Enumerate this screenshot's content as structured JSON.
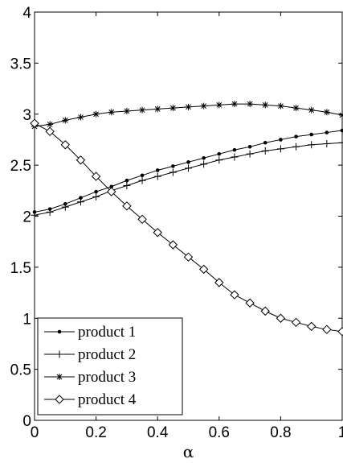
{
  "chart_data": {
    "type": "line",
    "xlabel": "α",
    "ylabel": "",
    "xlim": [
      0,
      1
    ],
    "ylim": [
      0,
      4
    ],
    "xticks": [
      "0",
      "0.2",
      "0.4",
      "0.6",
      "0.8",
      "1"
    ],
    "yticks": [
      "0",
      "0.5",
      "1",
      "1.5",
      "2",
      "2.5",
      "3",
      "3.5",
      "4"
    ],
    "grid": false,
    "legend_position": "bottom-left",
    "x": [
      0,
      0.05,
      0.1,
      0.15,
      0.2,
      0.25,
      0.3,
      0.35,
      0.4,
      0.45,
      0.5,
      0.55,
      0.6,
      0.65,
      0.7,
      0.75,
      0.8,
      0.85,
      0.9,
      0.95,
      1.0
    ],
    "series": [
      {
        "name": "product 1",
        "marker": "dot",
        "values": [
          2.04,
          2.07,
          2.12,
          2.18,
          2.24,
          2.29,
          2.35,
          2.4,
          2.45,
          2.49,
          2.53,
          2.57,
          2.61,
          2.65,
          2.68,
          2.72,
          2.75,
          2.78,
          2.8,
          2.82,
          2.84
        ]
      },
      {
        "name": "product 2",
        "marker": "plus",
        "values": [
          2.01,
          2.04,
          2.09,
          2.14,
          2.19,
          2.25,
          2.3,
          2.35,
          2.39,
          2.43,
          2.47,
          2.51,
          2.55,
          2.58,
          2.61,
          2.64,
          2.66,
          2.68,
          2.7,
          2.71,
          2.72
        ]
      },
      {
        "name": "product 3",
        "marker": "star",
        "values": [
          2.88,
          2.9,
          2.94,
          2.97,
          3.0,
          3.02,
          3.03,
          3.04,
          3.05,
          3.06,
          3.07,
          3.08,
          3.09,
          3.1,
          3.1,
          3.09,
          3.08,
          3.06,
          3.04,
          3.02,
          2.99
        ]
      },
      {
        "name": "product 4",
        "marker": "diamond",
        "values": [
          2.91,
          2.83,
          2.7,
          2.55,
          2.39,
          2.24,
          2.1,
          1.97,
          1.84,
          1.72,
          1.6,
          1.48,
          1.35,
          1.23,
          1.15,
          1.07,
          1.0,
          0.96,
          0.92,
          0.89,
          0.87
        ]
      }
    ]
  }
}
